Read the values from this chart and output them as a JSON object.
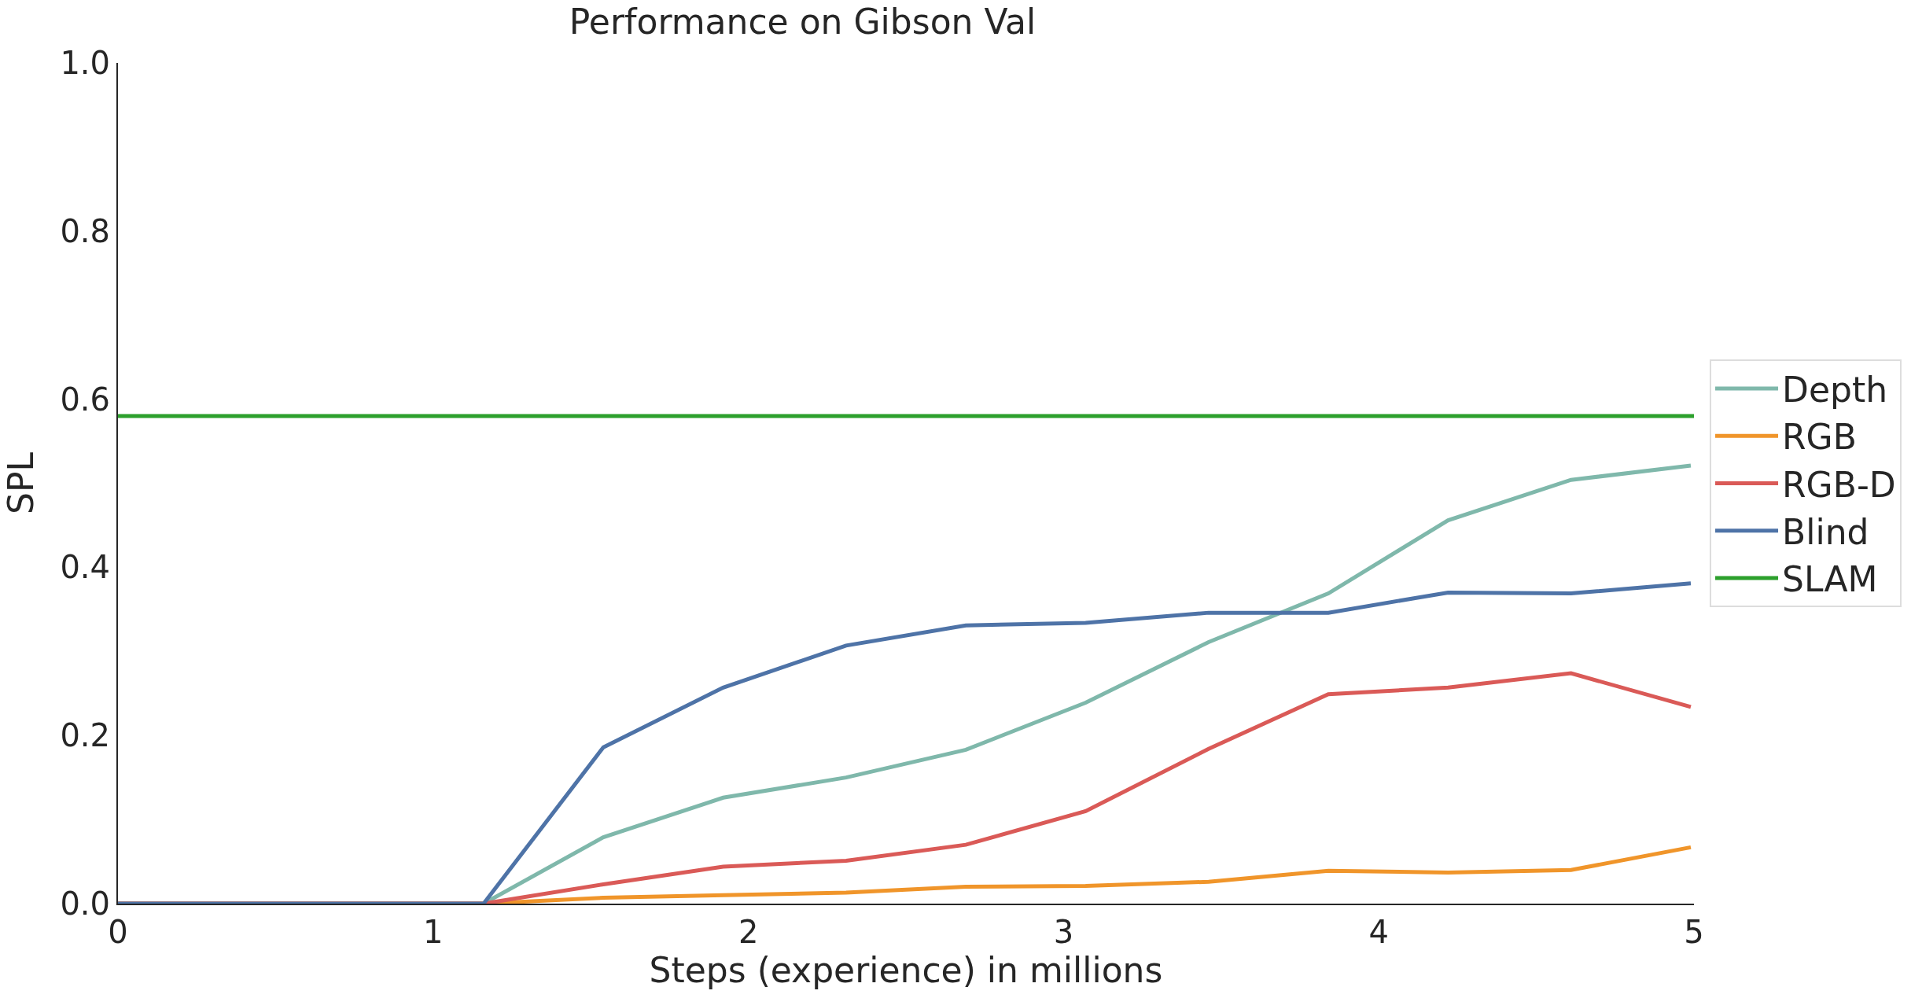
{
  "chart_data": {
    "type": "line",
    "title": "Performance on Gibson Val",
    "xlabel": "Steps (experience) in millions",
    "ylabel": "SPL",
    "x": [
      0,
      1.16,
      1.54,
      1.92,
      2.31,
      2.69,
      3.07,
      3.46,
      3.84,
      4.22,
      4.61,
      4.99
    ],
    "series": [
      {
        "name": "Depth",
        "color": "#7fb8ab",
        "values": [
          0,
          0,
          0.079,
          0.126,
          0.15,
          0.183,
          0.239,
          0.311,
          0.369,
          0.456,
          0.504,
          0.521
        ]
      },
      {
        "name": "RGB",
        "color": "#f0952a",
        "values": [
          0,
          0,
          0.007,
          0.01,
          0.013,
          0.02,
          0.021,
          0.026,
          0.039,
          0.037,
          0.04,
          0.067
        ]
      },
      {
        "name": "RGB-D",
        "color": "#da5a57",
        "values": [
          0,
          0,
          0.023,
          0.044,
          0.051,
          0.07,
          0.11,
          0.184,
          0.249,
          0.257,
          0.274,
          0.234
        ]
      },
      {
        "name": "Blind",
        "color": "#4e73a7",
        "values": [
          0,
          0,
          0.186,
          0.257,
          0.307,
          0.331,
          0.334,
          0.346,
          0.346,
          0.37,
          0.369,
          0.381
        ]
      },
      {
        "name": "SLAM",
        "color": "#2ca02c",
        "x": [
          0,
          5
        ],
        "values": [
          0.58,
          0.58
        ]
      }
    ],
    "xlim": [
      0,
      5
    ],
    "xticks": [
      0,
      1,
      2,
      3,
      4,
      5
    ],
    "ylim": [
      0,
      1.0
    ],
    "yticks": [
      {
        "value": 0,
        "label": "0.0"
      },
      0.2,
      0.4,
      0.6,
      0.8,
      {
        "value": 1.0,
        "label": "1.0"
      }
    ],
    "grid": false,
    "legend": "right",
    "marker": "none",
    "line_style": "solid"
  }
}
